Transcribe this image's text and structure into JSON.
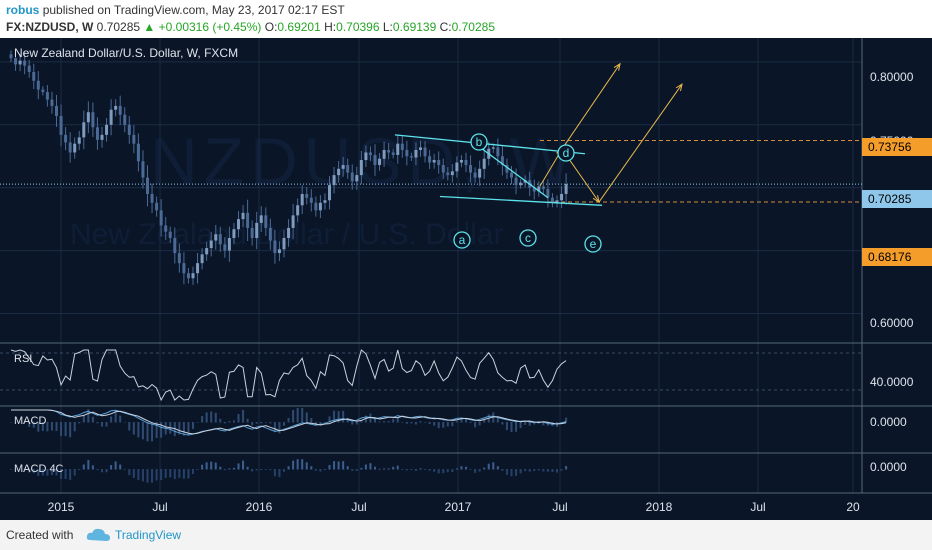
{
  "header": {
    "author": "robus",
    "published": "published on TradingView.com, May 23, 2017 02:17 EST",
    "symbol": "FX:NZDUSD, W",
    "price": "0.70285",
    "change": "+0.00316 (+0.45%)",
    "open_label": "O:",
    "open": "0.69201",
    "high_label": "H:",
    "high": "0.70396",
    "low_label": "L:",
    "low": "0.69139",
    "close_label": "C:",
    "close": "0.70285"
  },
  "watermark": {
    "big": "NZDUSD, W",
    "small": "New Zealand Dollar / U.S. Dollar"
  },
  "chart_data": {
    "type": "candlestick",
    "title": "New Zealand Dollar/U.S. Dollar, W, FXCM",
    "ylim": [
      0.5805,
      0.819
    ],
    "y_ticks": [
      "0.80000",
      "0.75000",
      "0.70285",
      "0.68176",
      "0.60000"
    ],
    "x_ticks": [
      "2015",
      "Jul",
      "2016",
      "Jul",
      "2017",
      "Jul",
      "2018",
      "Jul",
      "20"
    ],
    "price_tags": [
      {
        "label": "0.73756",
        "value": 0.73756,
        "color": "#f59d2a",
        "text": "#000000"
      },
      {
        "label": "0.70285",
        "value": 0.70285,
        "color": "#8fc7ea",
        "text": "#000000"
      },
      {
        "label": "0.68176",
        "value": 0.68176,
        "color": "#f59d2a",
        "text": "#000000"
      }
    ],
    "closes": [
      0.803,
      0.798,
      0.801,
      0.797,
      0.792,
      0.785,
      0.778,
      0.776,
      0.77,
      0.765,
      0.757,
      0.742,
      0.736,
      0.728,
      0.735,
      0.74,
      0.752,
      0.76,
      0.748,
      0.738,
      0.742,
      0.75,
      0.762,
      0.765,
      0.758,
      0.75,
      0.742,
      0.735,
      0.721,
      0.708,
      0.695,
      0.688,
      0.682,
      0.67,
      0.665,
      0.66,
      0.648,
      0.64,
      0.632,
      0.628,
      0.632,
      0.64,
      0.647,
      0.652,
      0.658,
      0.663,
      0.655,
      0.65,
      0.66,
      0.667,
      0.675,
      0.68,
      0.668,
      0.66,
      0.672,
      0.678,
      0.668,
      0.658,
      0.648,
      0.651,
      0.66,
      0.668,
      0.678,
      0.686,
      0.695,
      0.692,
      0.688,
      0.682,
      0.688,
      0.69,
      0.702,
      0.71,
      0.715,
      0.718,
      0.712,
      0.705,
      0.71,
      0.722,
      0.728,
      0.726,
      0.718,
      0.723,
      0.73,
      0.728,
      0.726,
      0.735,
      0.73,
      0.725,
      0.724,
      0.73,
      0.732,
      0.725,
      0.72,
      0.722,
      0.718,
      0.712,
      0.71,
      0.713,
      0.72,
      0.722,
      0.718,
      0.712,
      0.708,
      0.715,
      0.723,
      0.731,
      0.732,
      0.725,
      0.718,
      0.712,
      0.708,
      0.702,
      0.704,
      0.706,
      0.7,
      0.697,
      0.701,
      0.699,
      0.692,
      0.688,
      0.69,
      0.695,
      0.70285
    ],
    "projection": [
      {
        "name": "d",
        "value": 0.7307
      },
      {
        "name": "e",
        "value": 0.6886
      },
      {
        "name": "target-1",
        "value": 0.7985
      },
      {
        "name": "target-2",
        "value": 0.7823
      }
    ],
    "wave_labels": [
      "a",
      "b",
      "c",
      "d",
      "e"
    ],
    "panes": [
      {
        "name": "RSI",
        "ticks": [
          "40.0000"
        ]
      },
      {
        "name": "MACD",
        "ticks": [
          "0.0000"
        ]
      },
      {
        "name": "MACD 4C",
        "ticks": [
          "0.0000"
        ]
      }
    ]
  },
  "footer": {
    "created_with": "Created with",
    "brand": "TradingView"
  },
  "colors": {
    "background": "#0a1628",
    "candles": "#4b6a95",
    "trend": "#5ce2ea",
    "projection": "#e8b84c",
    "price_line": "#8fc7ea",
    "level_line": "#d48b3a"
  }
}
